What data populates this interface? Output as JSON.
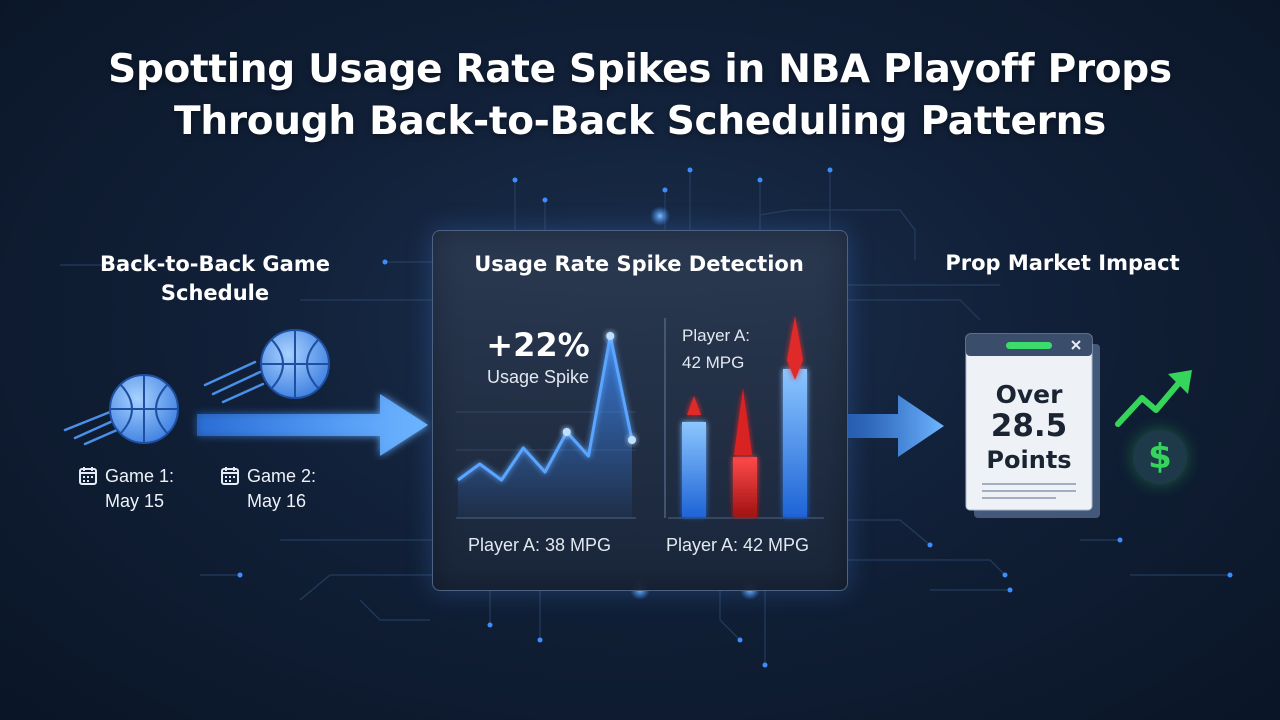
{
  "title": {
    "line1": "Spotting Usage Rate Spikes in NBA Playoff Props",
    "line2": "Through Back-to-Back Scheduling Patterns"
  },
  "schedule": {
    "heading_line1": "Back-to-Back Game",
    "heading_line2": "Schedule",
    "games": [
      {
        "label": "Game 1:",
        "date": "May 15"
      },
      {
        "label": "Game 2:",
        "date": "May 16"
      }
    ]
  },
  "detection": {
    "heading": "Usage Rate Spike Detection",
    "spike_value": "+22%",
    "spike_label": "Usage Spike",
    "left_caption": "Player A: 38 MPG",
    "right_caption": "Player A: 42 MPG",
    "note_line1": "Player A:",
    "note_line2": "42 MPG"
  },
  "prop": {
    "heading": "Prop Market Impact",
    "line1": "Over",
    "line2": "28.5",
    "line3": "Points",
    "currency_symbol": "$"
  },
  "icons": [
    "basketball-icon",
    "calendar-icon",
    "arrow-right-icon",
    "trend-up-icon",
    "dollar-icon",
    "close-icon"
  ],
  "colors": {
    "background": "#0e1b30",
    "accent_blue": "#3d8dff",
    "alert_red": "#e02a2a",
    "positive_green": "#35d45a"
  },
  "chart_data": [
    {
      "type": "area",
      "x": [
        1,
        2,
        3,
        4,
        5,
        6,
        7,
        8,
        9
      ],
      "values": [
        2,
        4,
        2,
        6,
        3,
        8,
        5,
        20,
        7
      ],
      "title": "",
      "xlabel": "",
      "ylabel": "",
      "grid": false
    },
    {
      "type": "bar",
      "categories": [
        "",
        "",
        ""
      ],
      "values": [
        95,
        60,
        148
      ],
      "title": "",
      "xlabel": "",
      "ylabel": "",
      "grid": false
    }
  ]
}
